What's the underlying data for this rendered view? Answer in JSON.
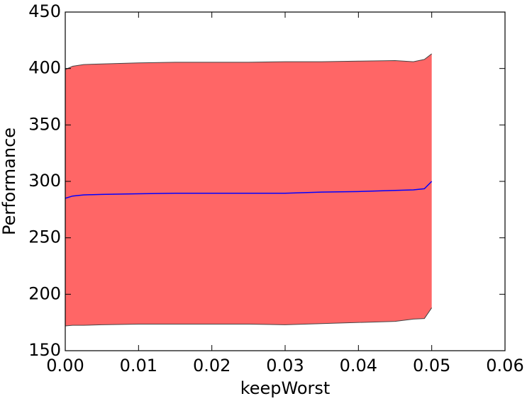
{
  "chart_data": {
    "type": "line",
    "x_label": "keepWorst",
    "y_label": "Performance",
    "x": [
      0,
      0.001,
      0.0025,
      0.005,
      0.01,
      0.015,
      0.02,
      0.025,
      0.03,
      0.035,
      0.04,
      0.045,
      0.0475,
      0.049,
      0.05
    ],
    "series": [
      {
        "color": "#0000ff",
        "values": [
          285,
          287,
          288,
          288.5,
          289,
          289.5,
          289.5,
          289.5,
          289.5,
          290.5,
          291,
          292,
          292.5,
          293.5,
          300
        ]
      }
    ],
    "band": {
      "color": "#ff6666",
      "edge_color": "#444444",
      "upper": [
        399,
        402,
        403.5,
        404,
        405,
        405.5,
        405.5,
        405.5,
        406,
        406,
        406.5,
        407,
        406,
        408,
        413
      ],
      "lower": [
        172,
        172.5,
        172.5,
        173,
        173.5,
        173.5,
        173.5,
        173.5,
        173,
        174,
        175,
        176,
        178,
        178.5,
        188
      ]
    },
    "xlim": [
      0,
      0.06
    ],
    "xticks": [
      {
        "value": 0,
        "label": "0.00"
      },
      {
        "value": 0.01,
        "label": "0.01"
      },
      {
        "value": 0.02,
        "label": "0.02"
      },
      {
        "value": 0.03,
        "label": "0.03"
      },
      {
        "value": 0.04,
        "label": "0.04"
      },
      {
        "value": 0.05,
        "label": "0.05"
      },
      {
        "value": 0.06,
        "label": "0.06"
      }
    ],
    "ylim": [
      150,
      450
    ],
    "yticks": [
      150,
      200,
      250,
      300,
      350,
      400,
      450
    ]
  }
}
